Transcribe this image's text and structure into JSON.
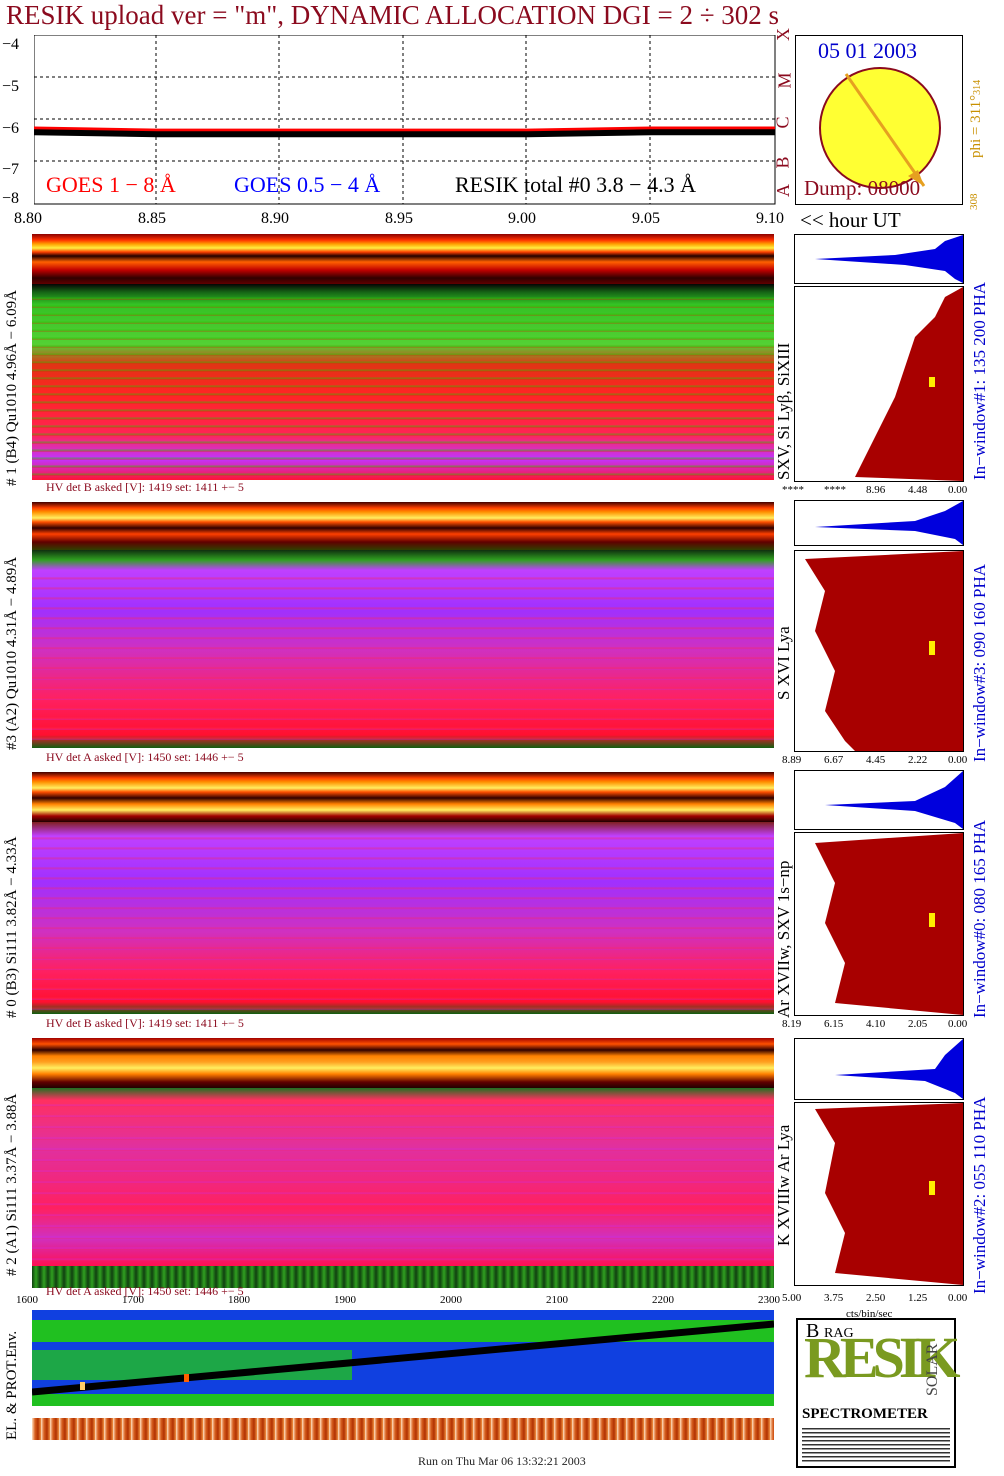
{
  "title": "RESIK upload ver = \"m\", DYNAMIC ALLOCATION  DGI =   2 ÷ 302 s",
  "goes_panel": {
    "y_ticks": [
      "−4",
      "−5",
      "−6",
      "−7",
      "−8"
    ],
    "class_labels": [
      "X",
      "M",
      "C",
      "B",
      "A"
    ],
    "legend": {
      "goes18": "GOES 1 − 8 Å",
      "goes054": "GOES 0.5 − 4 Å",
      "resik": "RESIK total #0  3.8 − 4.3 Å"
    }
  },
  "sun_panel": {
    "date": "05 01 2003",
    "phi": "phi = 311°",
    "phi_sub": "314",
    "phi_low": "308",
    "dump": "Dump: 08000"
  },
  "time_axis": {
    "ticks": [
      "8.80",
      "8.85",
      "8.90",
      "8.95",
      "9.00",
      "9.05",
      "9.10"
    ],
    "unit_label": "<< hour UT"
  },
  "channels": [
    {
      "left_label": "# 1 (B4) Qu1010 4.96Å − 6.09Å",
      "line_label": "SXV, Si Lyβ, SiXIII",
      "window_label": "In−window#1:  135 200 PHA",
      "hv_note": "HV det B asked [V]:  1419 set:  1411  +−     5",
      "hist_ticks": [
        "****",
        "****",
        "8.96",
        "4.48",
        "0.00"
      ]
    },
    {
      "left_label": "#3 (A2) Qu1010  4.31Å  − 4.89Å",
      "line_label": "S XVI Lya",
      "window_label": "In−window#3:  090 160 PHA",
      "hv_note": "HV det A asked [V]:  1450 set:  1446  +−     5",
      "hist_ticks": [
        "8.89",
        "6.67",
        "4.45",
        "2.22",
        "0.00"
      ]
    },
    {
      "left_label": "# 0 (B3) Si111  3.82Å − 4.33Å",
      "line_label": "Ar XVIIw,  SXV 1s−np",
      "window_label": "In−window#0:  080 165 PHA",
      "hv_note": "HV det B asked [V]:  1419 set:  1411  +−     5",
      "hist_ticks": [
        "8.19",
        "6.15",
        "4.10",
        "2.05",
        "0.00"
      ]
    },
    {
      "left_label": "# 2 (A1) Si111  3.37Å − 3.88Å",
      "line_label": "K XVIIIw  Ar Lya",
      "window_label": "In−window#2:  055 110 PHA",
      "hv_note": "HV det A asked [V]:  1450 set:  1446  +−     5",
      "hist_ticks": [
        "5.00",
        "3.75",
        "2.50",
        "1.25",
        "0.00"
      ]
    }
  ],
  "hist_unit": "cts/bin/sec",
  "env_panel": {
    "left_label": "EL. & PROT.Env.",
    "x_ticks": [
      "1600",
      "1700",
      "1800",
      "1900",
      "2000",
      "2100",
      "2200",
      "2300"
    ]
  },
  "logo": {
    "big_letters": "RESIK",
    "small_a": "B",
    "small_b": "RAG",
    "small_c": "SOLAR",
    "bottom": "SPECTROMETER"
  },
  "footer": "Run on Thu Mar 06 13:32:21 2003",
  "colors": {
    "title": "#8b0a1e",
    "goes18": "#ff0000",
    "goes054": "#0000ff",
    "hist_fill": "#a80000",
    "hist_top": "#0000dd",
    "date": "#0000cc",
    "phi": "#c89000"
  },
  "chart_data": {
    "type": "line",
    "title": "RESIK upload ver = \"m\", DYNAMIC ALLOCATION  DGI =   2 ÷ 302 s",
    "xlabel": "<< hour UT",
    "xlim": [
      8.8,
      9.1
    ],
    "ylim": [
      -8,
      -4
    ],
    "series": [
      {
        "name": "GOES 1 − 8 Å",
        "x": [
          8.8,
          8.85,
          8.9,
          8.95,
          9.0,
          9.05,
          9.1
        ],
        "values": [
          -6.2,
          -6.25,
          -6.25,
          -6.25,
          -6.25,
          -6.2,
          -6.2
        ]
      },
      {
        "name": "RESIK total #0  3.8 − 4.3 Å",
        "x": [
          8.8,
          8.85,
          8.9,
          8.95,
          9.0,
          9.05,
          9.1
        ],
        "values": [
          -6.3,
          -6.35,
          -6.35,
          -6.35,
          -6.35,
          -6.3,
          -6.3
        ]
      }
    ]
  }
}
